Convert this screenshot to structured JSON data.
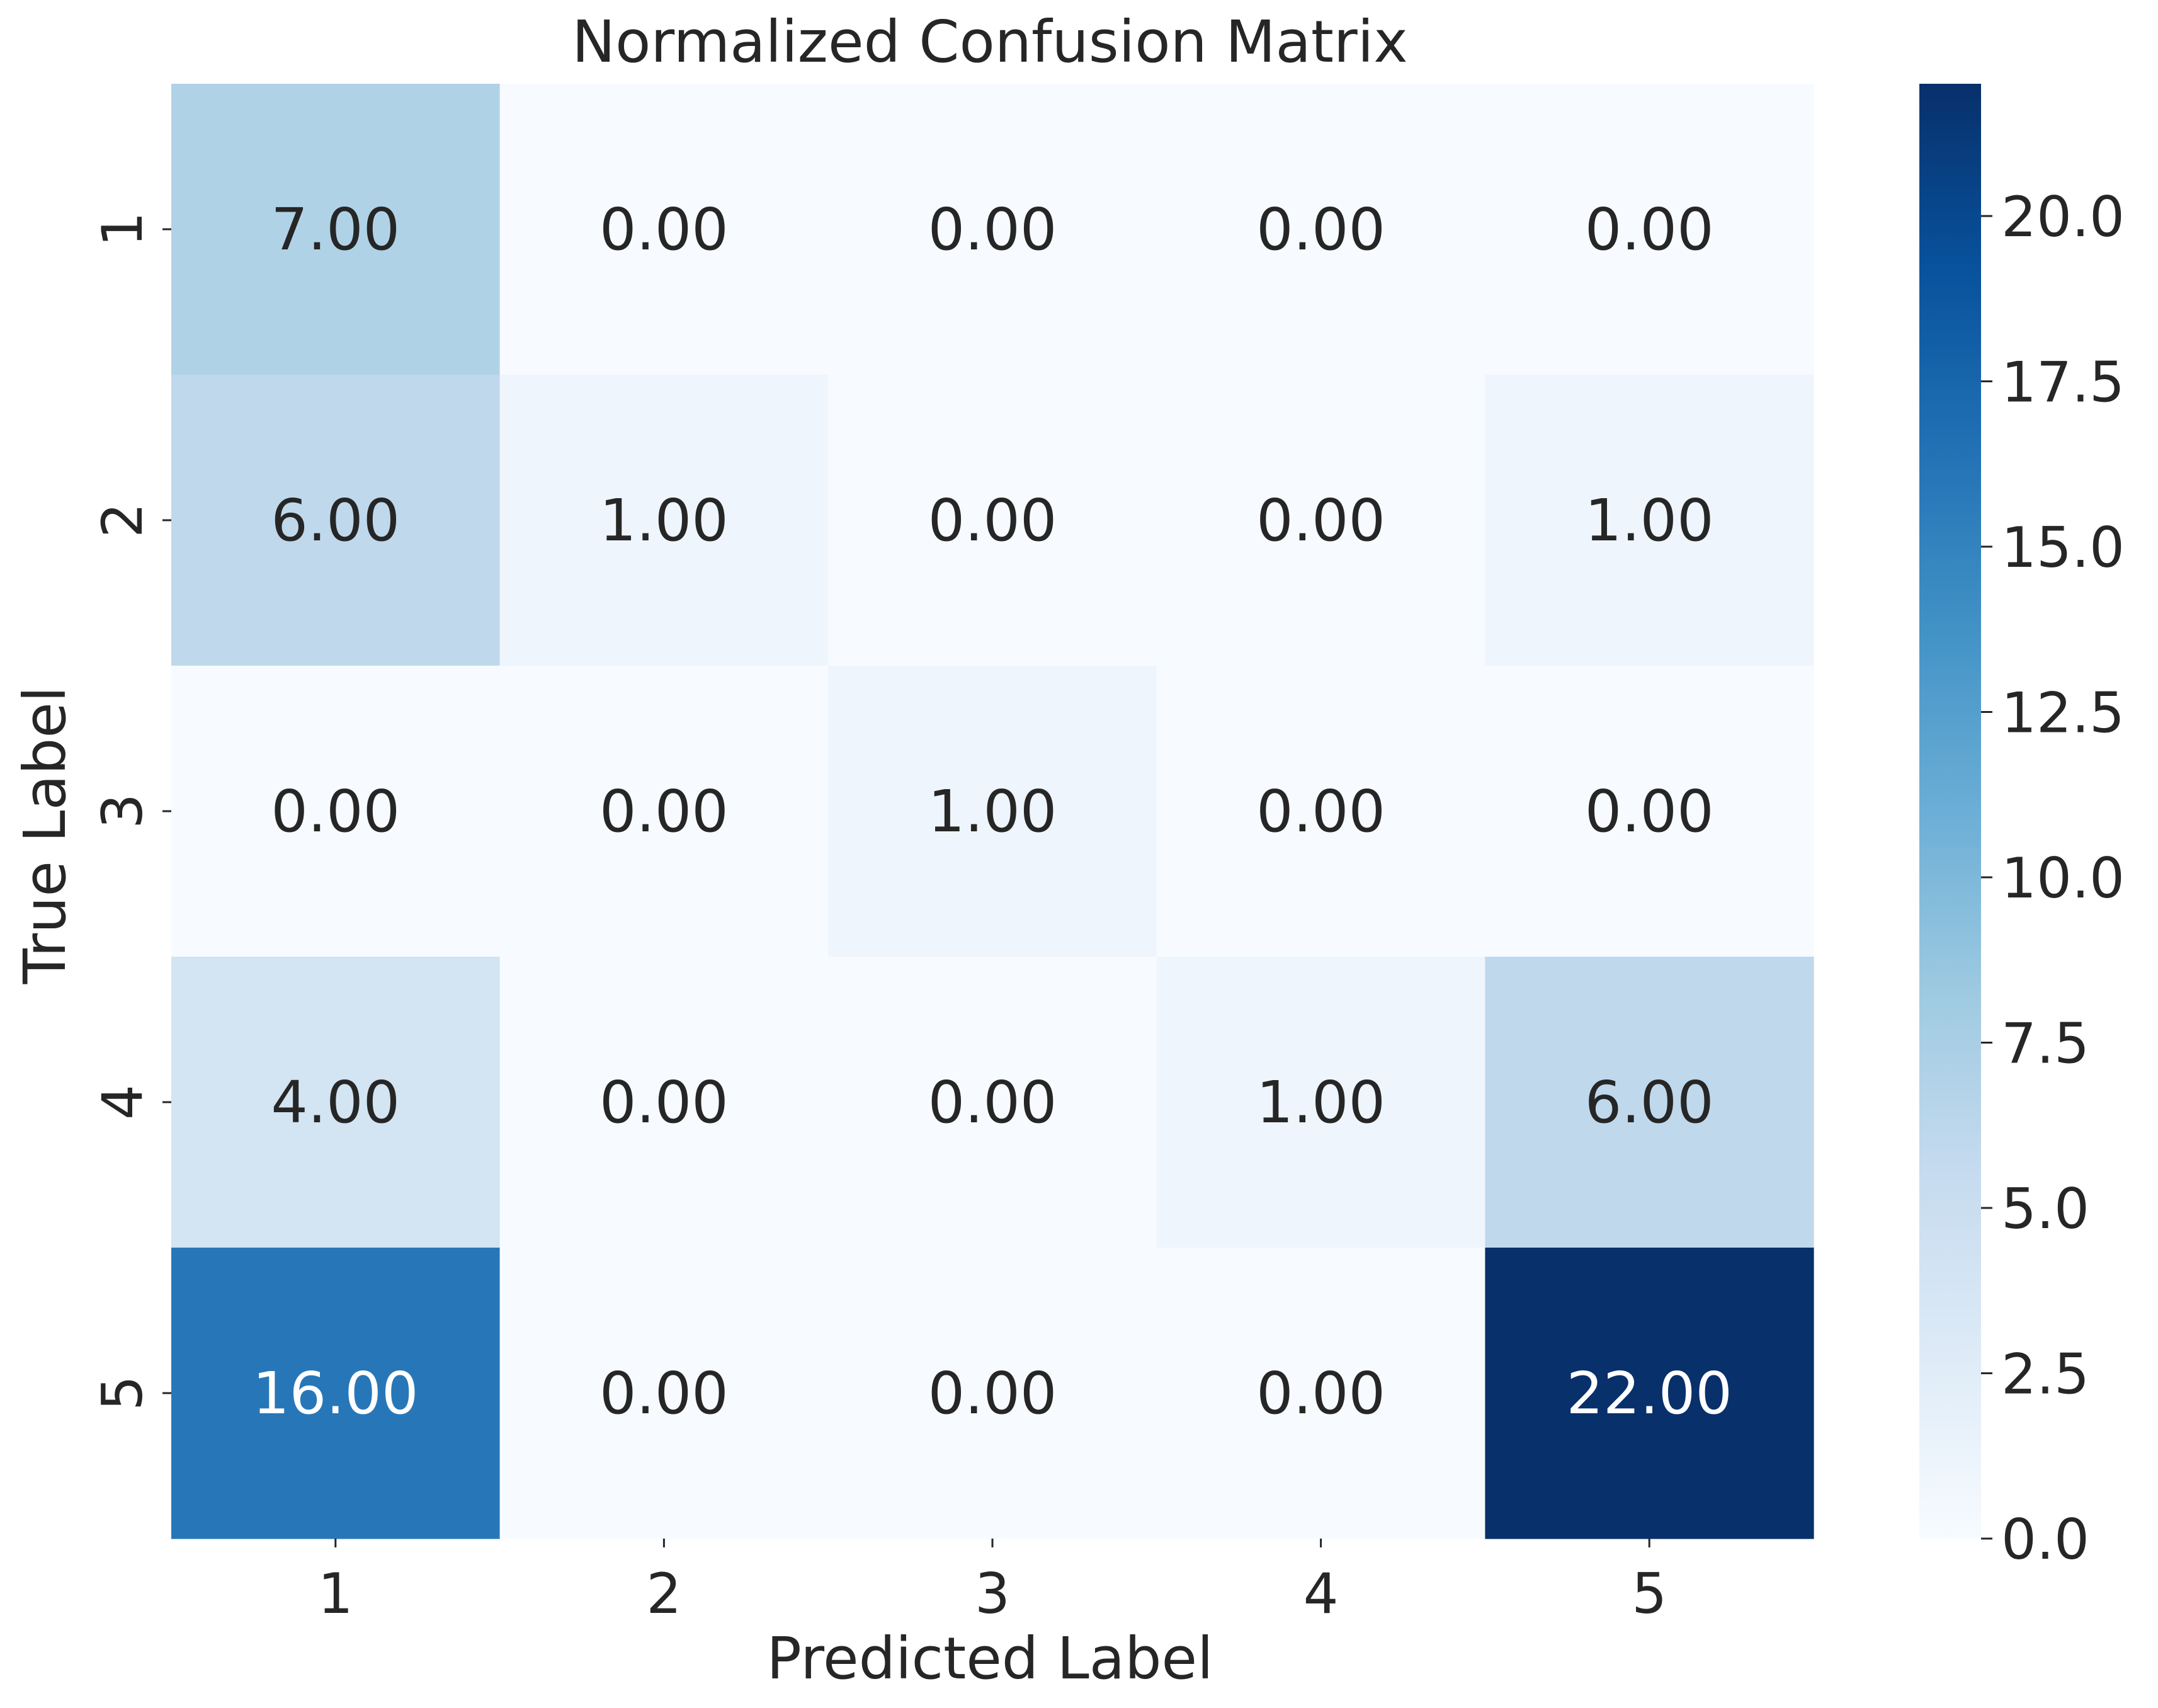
{
  "chart_data": {
    "type": "heatmap",
    "title": "Normalized Confusion Matrix",
    "xlabel": "Predicted Label",
    "ylabel": "True Label",
    "x_categories": [
      "1",
      "2",
      "3",
      "4",
      "5"
    ],
    "y_categories": [
      "1",
      "2",
      "3",
      "4",
      "5"
    ],
    "values": [
      [
        7,
        0,
        0,
        0,
        0
      ],
      [
        6,
        1,
        0,
        0,
        1
      ],
      [
        0,
        0,
        1,
        0,
        0
      ],
      [
        4,
        0,
        0,
        1,
        6
      ],
      [
        16,
        0,
        0,
        0,
        22
      ]
    ],
    "cell_labels": [
      [
        "7.00",
        "0.00",
        "0.00",
        "0.00",
        "0.00"
      ],
      [
        "6.00",
        "1.00",
        "0.00",
        "0.00",
        "1.00"
      ],
      [
        "0.00",
        "0.00",
        "1.00",
        "0.00",
        "0.00"
      ],
      [
        "4.00",
        "0.00",
        "0.00",
        "1.00",
        "6.00"
      ],
      [
        "16.00",
        "0.00",
        "0.00",
        "0.00",
        "22.00"
      ]
    ],
    "colormap": "Blues",
    "colorbar": {
      "range": [
        0,
        22
      ],
      "ticks": [
        0,
        2.5,
        5,
        7.5,
        10,
        12.5,
        15,
        17.5,
        20
      ],
      "tick_labels": [
        "0.0",
        "2.5",
        "5.0",
        "7.5",
        "10.0",
        "12.5",
        "15.0",
        "17.5",
        "20.0"
      ]
    },
    "grid": false,
    "legend": "colorbar-right"
  },
  "colors": {
    "text_dark": "#262626",
    "text_light": "#ffffff",
    "blues_stops": [
      "#f7fbff",
      "#deebf7",
      "#c6dbef",
      "#9ecae1",
      "#6baed6",
      "#4292c6",
      "#2171b5",
      "#08519c",
      "#08306b"
    ]
  }
}
